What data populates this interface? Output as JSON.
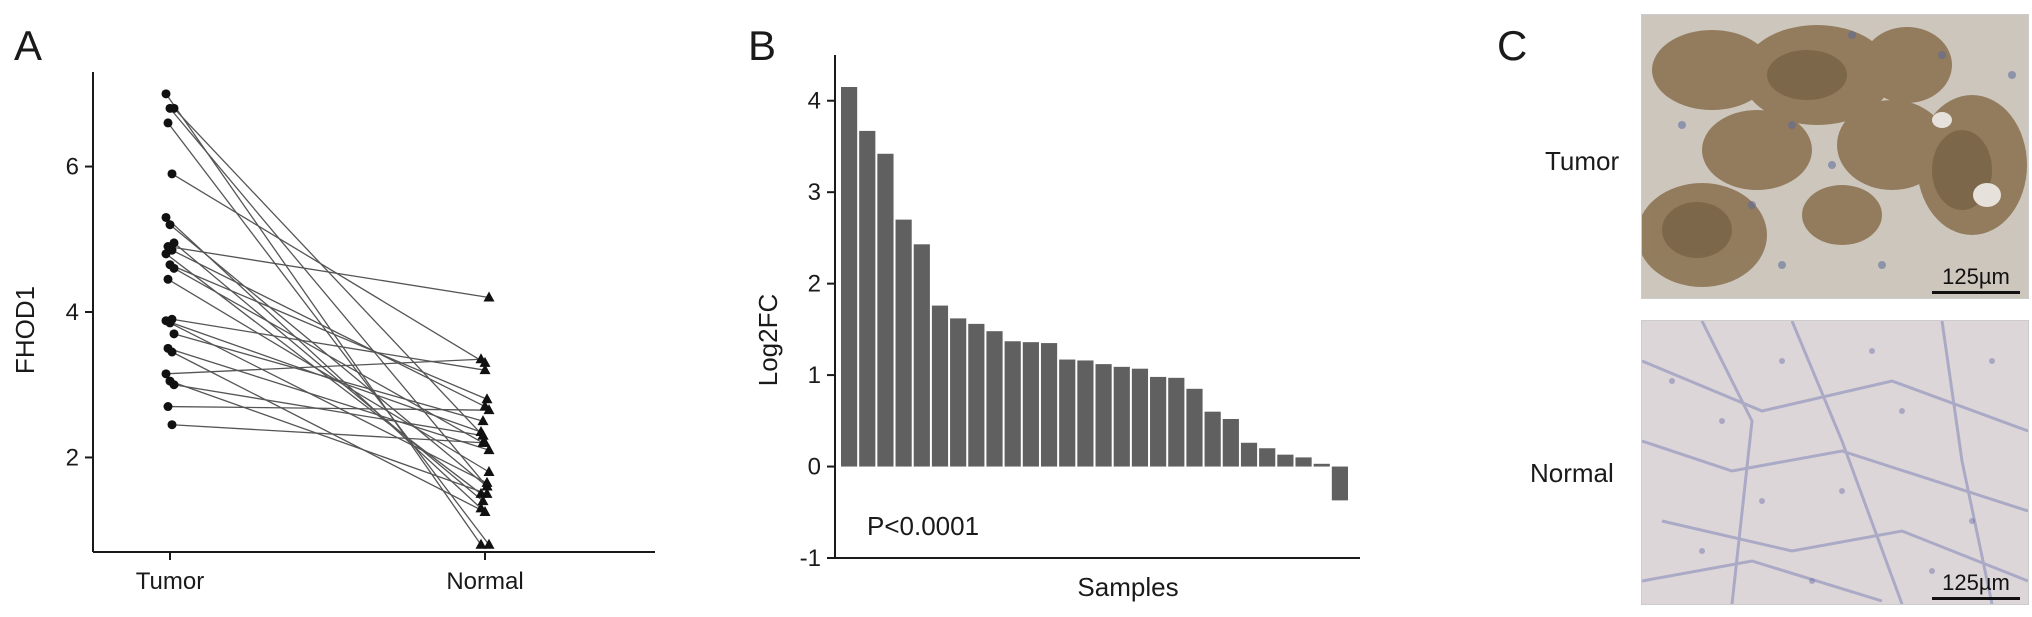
{
  "panels": {
    "a": "A",
    "b": "B",
    "c": "C"
  },
  "chart_data": [
    {
      "type": "line",
      "ylabel": "FHOD1",
      "xlabel": "",
      "categories": [
        "Tumor",
        "Normal"
      ],
      "ylim": [
        0.7,
        7.3
      ],
      "yticks": [
        2,
        4,
        6
      ],
      "pairs": [
        [
          7.0,
          0.8
        ],
        [
          6.8,
          1.6
        ],
        [
          6.8,
          2.3
        ],
        [
          6.6,
          0.8
        ],
        [
          5.9,
          3.3
        ],
        [
          5.3,
          1.3
        ],
        [
          5.2,
          1.6
        ],
        [
          4.95,
          1.4
        ],
        [
          4.9,
          4.2
        ],
        [
          4.85,
          2.7
        ],
        [
          4.8,
          1.5
        ],
        [
          4.65,
          2.8
        ],
        [
          4.6,
          2.2
        ],
        [
          4.45,
          1.8
        ],
        [
          3.9,
          3.2
        ],
        [
          3.88,
          2.35
        ],
        [
          3.85,
          1.65
        ],
        [
          3.7,
          2.5
        ],
        [
          3.5,
          2.1
        ],
        [
          3.45,
          1.25
        ],
        [
          3.15,
          3.35
        ],
        [
          3.05,
          1.5
        ],
        [
          3.0,
          2.3
        ],
        [
          2.7,
          2.65
        ],
        [
          2.45,
          2.2
        ]
      ]
    },
    {
      "type": "bar",
      "ylabel": "Log2FC",
      "xlabel": "Samples",
      "ylim": [
        -1,
        4.5
      ],
      "yticks": [
        -1,
        0,
        1,
        2,
        3,
        4
      ],
      "values": [
        4.15,
        3.67,
        3.42,
        2.7,
        2.43,
        1.76,
        1.62,
        1.56,
        1.48,
        1.37,
        1.36,
        1.35,
        1.17,
        1.16,
        1.12,
        1.09,
        1.07,
        0.98,
        0.97,
        0.85,
        0.6,
        0.52,
        0.26,
        0.2,
        0.13,
        0.1,
        0.03,
        -0.37
      ],
      "annotation": "P<0.0001",
      "bar_color": "#606060"
    }
  ],
  "micrographs": {
    "tumor_label": "Tumor",
    "normal_label": "Normal",
    "scale_top": "125µm",
    "scale_bottom": "125µm"
  }
}
